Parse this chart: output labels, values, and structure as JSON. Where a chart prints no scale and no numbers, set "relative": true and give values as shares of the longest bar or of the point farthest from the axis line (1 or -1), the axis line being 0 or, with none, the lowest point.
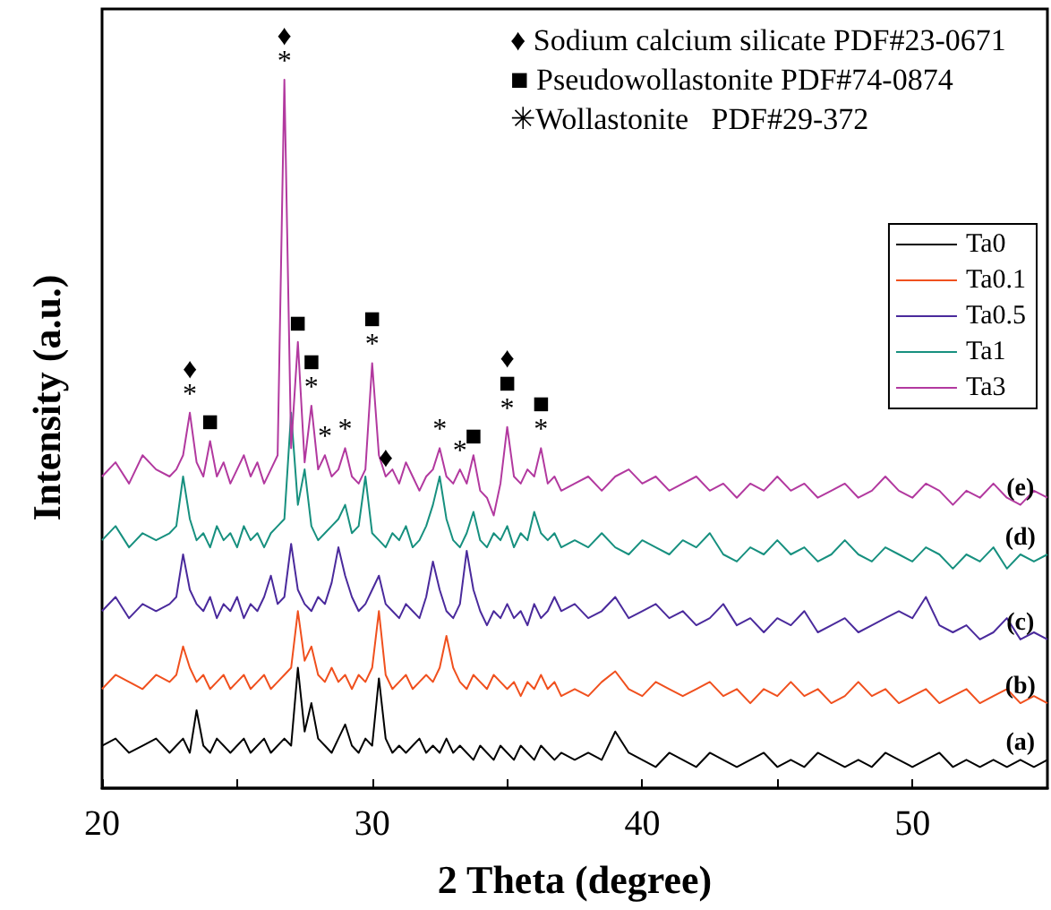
{
  "chart_data": {
    "type": "line",
    "relative": true,
    "xlabel": "2 Theta (degree)",
    "ylabel": "Intensity (a.u.)",
    "xlim": [
      20,
      55
    ],
    "xticks": [
      20,
      {
        "value": 25,
        "label": null
      },
      30,
      {
        "value": 35,
        "label": null
      },
      40,
      {
        "value": 45,
        "label": null
      },
      50
    ],
    "grid": false,
    "legend": "right",
    "marker": "none",
    "line_style": "solid",
    "x": [
      20,
      20.5,
      21,
      21.5,
      22,
      22.5,
      22.75,
      23,
      23.25,
      23.5,
      23.75,
      24,
      24.25,
      24.5,
      24.75,
      25,
      25.25,
      25.5,
      25.75,
      26,
      26.25,
      26.5,
      26.75,
      27,
      27.25,
      27.5,
      27.75,
      28,
      28.25,
      28.5,
      28.75,
      29,
      29.25,
      29.5,
      29.75,
      30,
      30.25,
      30.5,
      30.75,
      31,
      31.25,
      31.5,
      31.75,
      32,
      32.25,
      32.5,
      32.75,
      33,
      33.25,
      33.5,
      33.75,
      34,
      34.25,
      34.5,
      34.75,
      35,
      35.25,
      35.5,
      35.75,
      36,
      36.25,
      36.5,
      36.75,
      37,
      37.5,
      38,
      38.5,
      39,
      39.5,
      40,
      40.5,
      41,
      41.5,
      42,
      42.5,
      43,
      43.5,
      44,
      44.5,
      45,
      45.5,
      46,
      46.5,
      47,
      47.5,
      48,
      48.5,
      49,
      49.5,
      50,
      50.5,
      51,
      51.5,
      52,
      52.5,
      53,
      53.5,
      54,
      54.5,
      55
    ],
    "series": [
      {
        "name": "Ta0",
        "color": "#000000",
        "values": [
          0.06,
          0.07,
          0.05,
          0.06,
          0.07,
          0.05,
          0.06,
          0.07,
          0.05,
          0.11,
          0.06,
          0.05,
          0.07,
          0.06,
          0.05,
          0.06,
          0.07,
          0.05,
          0.06,
          0.07,
          0.05,
          0.06,
          0.07,
          0.06,
          0.17,
          0.08,
          0.12,
          0.07,
          0.06,
          0.05,
          0.07,
          0.09,
          0.06,
          0.05,
          0.07,
          0.06,
          0.155,
          0.07,
          0.05,
          0.06,
          0.05,
          0.06,
          0.07,
          0.05,
          0.06,
          0.05,
          0.07,
          0.05,
          0.06,
          0.05,
          0.04,
          0.06,
          0.05,
          0.04,
          0.06,
          0.05,
          0.04,
          0.06,
          0.05,
          0.04,
          0.06,
          0.05,
          0.04,
          0.05,
          0.04,
          0.05,
          0.04,
          0.08,
          0.05,
          0.04,
          0.03,
          0.05,
          0.04,
          0.03,
          0.05,
          0.04,
          0.03,
          0.04,
          0.05,
          0.03,
          0.04,
          0.03,
          0.05,
          0.04,
          0.03,
          0.04,
          0.03,
          0.05,
          0.04,
          0.03,
          0.04,
          0.05,
          0.03,
          0.04,
          0.03,
          0.04,
          0.03,
          0.04,
          0.03,
          0.04
        ]
      },
      {
        "name": "Ta0.1",
        "color": "#f0501e",
        "values": [
          0.14,
          0.16,
          0.15,
          0.14,
          0.16,
          0.15,
          0.16,
          0.2,
          0.17,
          0.15,
          0.16,
          0.14,
          0.15,
          0.16,
          0.14,
          0.15,
          0.16,
          0.14,
          0.15,
          0.16,
          0.14,
          0.15,
          0.16,
          0.17,
          0.25,
          0.18,
          0.2,
          0.16,
          0.15,
          0.17,
          0.15,
          0.16,
          0.14,
          0.16,
          0.15,
          0.17,
          0.25,
          0.16,
          0.14,
          0.15,
          0.16,
          0.14,
          0.15,
          0.16,
          0.15,
          0.17,
          0.215,
          0.17,
          0.15,
          0.14,
          0.16,
          0.15,
          0.14,
          0.16,
          0.15,
          0.14,
          0.15,
          0.13,
          0.15,
          0.14,
          0.16,
          0.14,
          0.15,
          0.13,
          0.14,
          0.13,
          0.15,
          0.165,
          0.14,
          0.13,
          0.15,
          0.14,
          0.13,
          0.14,
          0.15,
          0.13,
          0.14,
          0.12,
          0.14,
          0.13,
          0.15,
          0.13,
          0.14,
          0.12,
          0.13,
          0.15,
          0.13,
          0.14,
          0.12,
          0.13,
          0.14,
          0.12,
          0.13,
          0.14,
          0.12,
          0.13,
          0.14,
          0.12,
          0.13,
          0.12
        ]
      },
      {
        "name": "Ta0.5",
        "color": "#4a2a9c",
        "values": [
          0.25,
          0.27,
          0.24,
          0.26,
          0.25,
          0.26,
          0.27,
          0.33,
          0.28,
          0.26,
          0.25,
          0.27,
          0.24,
          0.26,
          0.25,
          0.27,
          0.24,
          0.26,
          0.25,
          0.27,
          0.3,
          0.26,
          0.27,
          0.345,
          0.28,
          0.26,
          0.25,
          0.27,
          0.26,
          0.29,
          0.34,
          0.3,
          0.27,
          0.25,
          0.26,
          0.28,
          0.3,
          0.26,
          0.25,
          0.24,
          0.26,
          0.25,
          0.24,
          0.27,
          0.32,
          0.28,
          0.25,
          0.24,
          0.26,
          0.335,
          0.28,
          0.25,
          0.23,
          0.25,
          0.24,
          0.26,
          0.24,
          0.25,
          0.23,
          0.26,
          0.24,
          0.25,
          0.27,
          0.25,
          0.26,
          0.24,
          0.25,
          0.27,
          0.24,
          0.25,
          0.26,
          0.24,
          0.25,
          0.23,
          0.24,
          0.26,
          0.23,
          0.24,
          0.22,
          0.24,
          0.23,
          0.25,
          0.22,
          0.23,
          0.24,
          0.22,
          0.23,
          0.24,
          0.25,
          0.24,
          0.27,
          0.23,
          0.22,
          0.23,
          0.21,
          0.22,
          0.24,
          0.21,
          0.22,
          0.21
        ]
      },
      {
        "name": "Ta1",
        "color": "#17907f",
        "values": [
          0.35,
          0.37,
          0.34,
          0.36,
          0.35,
          0.36,
          0.37,
          0.44,
          0.38,
          0.35,
          0.36,
          0.34,
          0.37,
          0.35,
          0.36,
          0.34,
          0.37,
          0.35,
          0.36,
          0.34,
          0.36,
          0.37,
          0.38,
          0.53,
          0.4,
          0.45,
          0.37,
          0.35,
          0.36,
          0.37,
          0.38,
          0.4,
          0.36,
          0.37,
          0.44,
          0.36,
          0.35,
          0.34,
          0.36,
          0.35,
          0.37,
          0.34,
          0.35,
          0.37,
          0.4,
          0.44,
          0.38,
          0.35,
          0.34,
          0.36,
          0.39,
          0.35,
          0.34,
          0.36,
          0.35,
          0.37,
          0.34,
          0.36,
          0.35,
          0.39,
          0.36,
          0.35,
          0.36,
          0.34,
          0.35,
          0.34,
          0.36,
          0.34,
          0.33,
          0.35,
          0.34,
          0.33,
          0.35,
          0.34,
          0.36,
          0.33,
          0.32,
          0.34,
          0.33,
          0.35,
          0.33,
          0.34,
          0.32,
          0.33,
          0.35,
          0.33,
          0.32,
          0.34,
          0.33,
          0.32,
          0.34,
          0.33,
          0.31,
          0.33,
          0.32,
          0.34,
          0.31,
          0.33,
          0.32,
          0.33
        ]
      },
      {
        "name": "Ta3",
        "color": "#b2399f",
        "values": [
          0.44,
          0.46,
          0.43,
          0.47,
          0.45,
          0.44,
          0.45,
          0.47,
          0.53,
          0.46,
          0.44,
          0.49,
          0.44,
          0.46,
          0.43,
          0.45,
          0.47,
          0.44,
          0.46,
          0.43,
          0.45,
          0.47,
          1.0,
          0.48,
          0.63,
          0.46,
          0.54,
          0.45,
          0.47,
          0.44,
          0.45,
          0.48,
          0.44,
          0.43,
          0.45,
          0.6,
          0.47,
          0.44,
          0.45,
          0.43,
          0.46,
          0.44,
          0.42,
          0.44,
          0.45,
          0.48,
          0.44,
          0.43,
          0.45,
          0.43,
          0.47,
          0.42,
          0.41,
          0.385,
          0.43,
          0.51,
          0.44,
          0.43,
          0.45,
          0.44,
          0.48,
          0.43,
          0.44,
          0.42,
          0.43,
          0.44,
          0.42,
          0.44,
          0.45,
          0.43,
          0.44,
          0.42,
          0.43,
          0.44,
          0.42,
          0.43,
          0.41,
          0.43,
          0.42,
          0.44,
          0.42,
          0.43,
          0.41,
          0.42,
          0.43,
          0.41,
          0.42,
          0.44,
          0.42,
          0.41,
          0.43,
          0.42,
          0.4,
          0.42,
          0.41,
          0.43,
          0.41,
          0.4,
          0.42,
          0.41
        ]
      }
    ],
    "annotations": [
      "♦ Sodium calcium silicate PDF#23-0671",
      "■ Pseudowollastonite PDF#74-0874",
      "✳Wollastonite   PDF#29-372",
      {
        "text": "♦",
        "x": 26.75,
        "y": 1.0
      },
      {
        "text": "*",
        "x": 26.75,
        "y": 1.0
      },
      {
        "text": "♦",
        "x": 23.25,
        "y": 0.53
      },
      {
        "text": "*",
        "x": 23.25,
        "y": 0.53
      },
      {
        "text": "■",
        "x": 24,
        "y": 0.49
      },
      {
        "text": "■",
        "x": 27.25,
        "y": 0.63
      },
      {
        "text": "■",
        "x": 27.75,
        "y": 0.54
      },
      {
        "text": "*",
        "x": 27.75,
        "y": 0.54
      },
      {
        "text": "*",
        "x": 28.25,
        "y": 0.47
      },
      {
        "text": "*",
        "x": 29,
        "y": 0.48
      },
      {
        "text": "■",
        "x": 30,
        "y": 0.6
      },
      {
        "text": "*",
        "x": 30,
        "y": 0.6
      },
      {
        "text": "♦",
        "x": 30.5,
        "y": 0.44
      },
      {
        "text": "*",
        "x": 32.5,
        "y": 0.48
      },
      {
        "text": "*",
        "x": 33.25,
        "y": 0.45
      },
      {
        "text": "■",
        "x": 33.75,
        "y": 0.47
      },
      {
        "text": "♦",
        "x": 35,
        "y": 0.51
      },
      {
        "text": "■",
        "x": 35,
        "y": 0.51
      },
      {
        "text": "*",
        "x": 35,
        "y": 0.51
      },
      {
        "text": "■",
        "x": 36.25,
        "y": 0.48
      },
      {
        "text": "*",
        "x": 36.25,
        "y": 0.48
      },
      {
        "text": "(e)",
        "x": 54,
        "y": 0.4
      },
      {
        "text": "(d)",
        "x": 54,
        "y": 0.33
      },
      {
        "text": "(c)",
        "x": 54,
        "y": 0.21
      },
      {
        "text": "(b)",
        "x": 54,
        "y": 0.12
      },
      {
        "text": "(a)",
        "x": 54,
        "y": 0.04
      }
    ]
  }
}
